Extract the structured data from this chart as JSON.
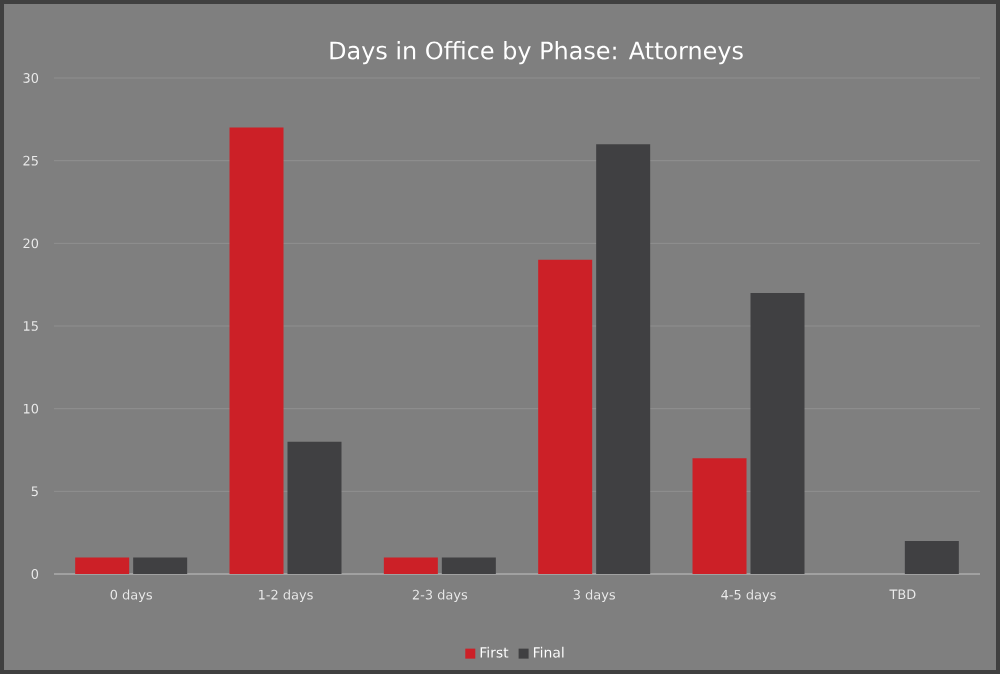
{
  "chart_data": {
    "type": "bar",
    "title": "Days in Office by Phase: Attorneys",
    "categories": [
      "0 days",
      "1-2 days",
      "2-3 days",
      "3 days",
      "4-5 days",
      "TBD"
    ],
    "series": [
      {
        "name": "First",
        "color": "#cc2027",
        "values": [
          1,
          27,
          1,
          19,
          7,
          null
        ]
      },
      {
        "name": "Final",
        "color": "#404042",
        "values": [
          1,
          8,
          1,
          26,
          17,
          2
        ]
      }
    ],
    "ylim": [
      0,
      30
    ],
    "yticks": [
      0,
      5,
      10,
      15,
      20,
      25,
      30
    ],
    "grid": "y",
    "legend": "bottom"
  }
}
